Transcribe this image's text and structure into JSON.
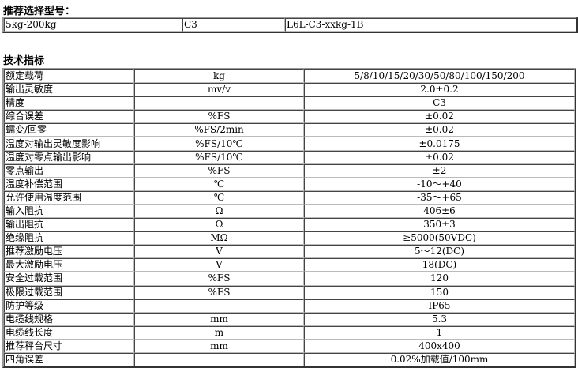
{
  "model_section": {
    "title": "推荐选择型号：",
    "row": [
      "5kg-200kg",
      "C3",
      "L6L-C3-xxkg-1B"
    ]
  },
  "spec_section": {
    "title": "技术指标",
    "rows": [
      [
        "额定载荷",
        "kg",
        "5/8/10/15/20/30/50/80/100/150/200"
      ],
      [
        "输出灵敏度",
        "mv/v",
        "2.0±0.2"
      ],
      [
        "精度",
        "",
        "C3"
      ],
      [
        "综合误差",
        "%FS",
        "±0.02"
      ],
      [
        "蠕变/回零",
        "%FS/2min",
        "±0.02"
      ],
      [
        "温度对输出灵敏度影响",
        "%FS/10℃",
        "±0.0175"
      ],
      [
        "温度对零点输出影响",
        "%FS/10℃",
        "±0.02"
      ],
      [
        "零点输出",
        "%FS",
        "±2"
      ],
      [
        "温度补偿范围",
        "℃",
        "-10～+40"
      ],
      [
        "允许使用温度范围",
        "℃",
        "-35～+65"
      ],
      [
        "输入阻抗",
        "Ω",
        "406±6"
      ],
      [
        "输出阻抗",
        "Ω",
        "350±3"
      ],
      [
        "绝缘阻抗",
        "MΩ",
        "≥5000(50VDC)"
      ],
      [
        "推荐激励电压",
        "V",
        "5～12(DC)"
      ],
      [
        "最大激励电压",
        "V",
        "18(DC)"
      ],
      [
        "安全过载范围",
        "%FS",
        "120"
      ],
      [
        "极限过载范围",
        "%FS",
        "150"
      ],
      [
        "防护等级",
        "",
        "IP65"
      ],
      [
        "电缆线规格",
        "mm",
        "5.3"
      ],
      [
        "电缆线长度",
        "m",
        "1"
      ],
      [
        "推荐秤台尺寸",
        "mm",
        "400x400"
      ],
      [
        "四角误差",
        "",
        "0.02%加载值/100mm"
      ]
    ]
  }
}
